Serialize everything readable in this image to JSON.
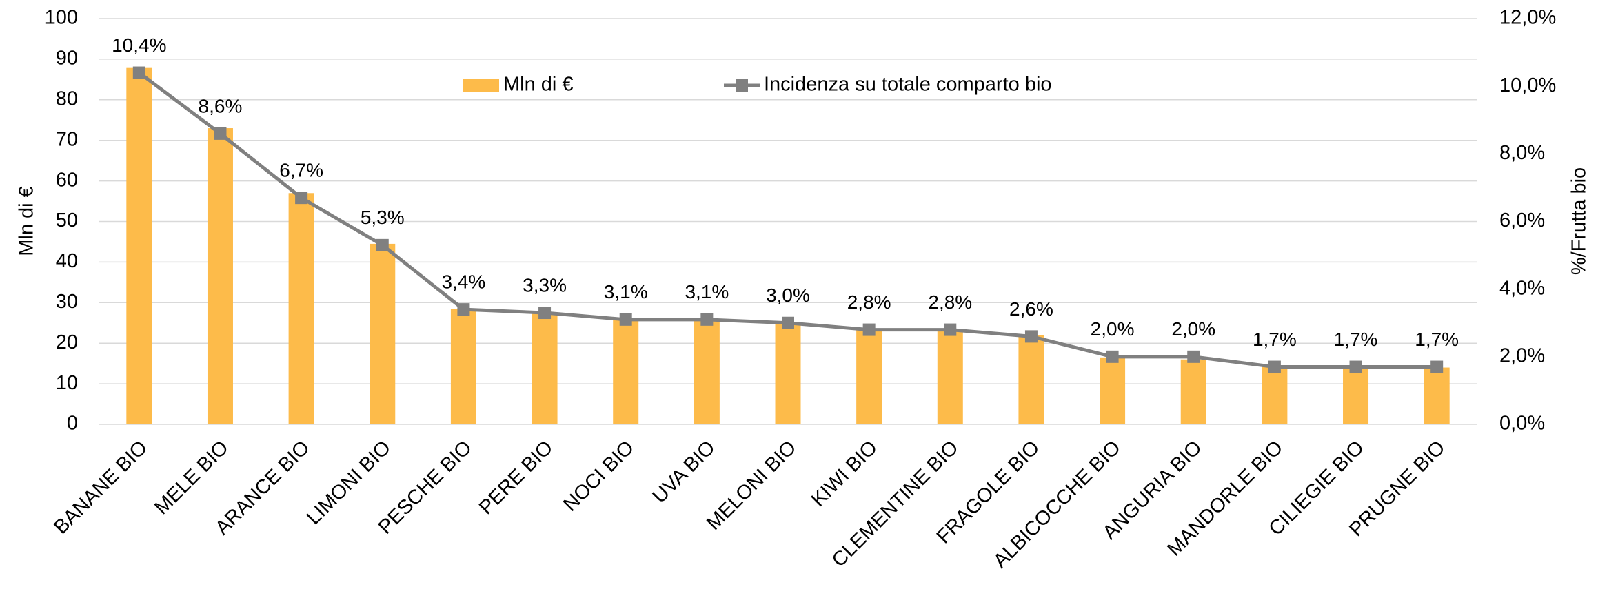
{
  "chart_data": {
    "type": "bar",
    "y_label": "Mln di €",
    "y2_label": "%/Frutta bio",
    "categories": [
      "BANANE BIO",
      "MELE BIO",
      "ARANCE BIO",
      "LIMONI BIO",
      "PESCHE BIO",
      "PERE BIO",
      "NOCI BIO",
      "UVA BIO",
      "MELONI BIO",
      "KIWI BIO",
      "CLEMENTINE BIO",
      "FRAGOLE BIO",
      "ALBICOCCHE BIO",
      "ANGURIA BIO",
      "MANDORLE BIO",
      "CILIEGIE BIO",
      "PRUGNE BIO"
    ],
    "series": [
      {
        "name": "Mln di €",
        "type": "bar",
        "axis": "y",
        "color": "#fdbb4a",
        "values": [
          88,
          73,
          57,
          44.5,
          28.5,
          27.5,
          26,
          25.5,
          25,
          23.5,
          23,
          22,
          16.5,
          16,
          14.5,
          14,
          14
        ]
      },
      {
        "name": "Incidenza su totale comparto bio",
        "type": "line",
        "axis": "y2",
        "color": "#808080",
        "values": [
          10.4,
          8.6,
          6.7,
          5.3,
          3.4,
          3.3,
          3.1,
          3.1,
          3.0,
          2.8,
          2.8,
          2.6,
          2.0,
          2.0,
          1.7,
          1.7,
          1.7
        ],
        "value_labels": [
          "10,4%",
          "8,6%",
          "6,7%",
          "5,3%",
          "3,4%",
          "3,3%",
          "3,1%",
          "3,1%",
          "3,0%",
          "2,8%",
          "2,8%",
          "2,6%",
          "2,0%",
          "2,0%",
          "1,7%",
          "1,7%",
          "1,7%"
        ]
      }
    ],
    "ylim": [
      0,
      100
    ],
    "yticks": [
      0,
      10,
      20,
      30,
      40,
      50,
      60,
      70,
      80,
      90,
      100
    ],
    "y2lim": [
      0,
      12
    ],
    "y2ticks": [
      {
        "value": 0,
        "label": "0,0%"
      },
      {
        "value": 2,
        "label": "2,0%"
      },
      {
        "value": 4,
        "label": "4,0%"
      },
      {
        "value": 6,
        "label": "6,0%"
      },
      {
        "value": 8,
        "label": "8,0%"
      },
      {
        "value": 10,
        "label": "10,0%"
      },
      {
        "value": 12,
        "label": "12,0%"
      }
    ],
    "grid": true,
    "legend": "top"
  }
}
